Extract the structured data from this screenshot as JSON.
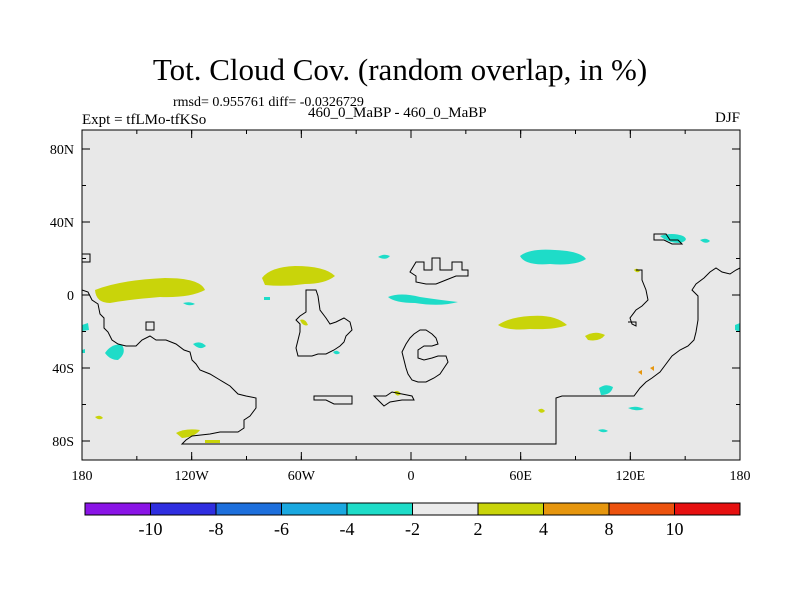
{
  "title": "Tot. Cloud Cov. (random overlap, in %)",
  "stats": "rmsd= 0.955761  diff= -0.0326729",
  "experiment": "Expt = tfLMo-tfKSo",
  "experiment_names": "460_0_MaBP - 460_0_MaBP",
  "season": "DJF",
  "lat_labels": [
    "80N",
    "40N",
    "0",
    "40S",
    "80S"
  ],
  "lat_values": [
    80,
    40,
    0,
    -40,
    -80
  ],
  "lon_labels": [
    "180",
    "120W",
    "60W",
    "0",
    "60E",
    "120E",
    "180"
  ],
  "lon_values": [
    -180,
    -120,
    -60,
    0,
    60,
    120,
    180
  ],
  "colorbar": {
    "labels": [
      "-10",
      "-8",
      "-6",
      "-4",
      "-2",
      "2",
      "4",
      "8",
      "10"
    ],
    "colors": [
      "#8a14e6",
      "#2f2ee0",
      "#1d6fdc",
      "#1aa8e0",
      "#1edcc8",
      "#ebebeb",
      "#c9d40a",
      "#e6960e",
      "#ec520e",
      "#e61010"
    ]
  },
  "colors": {
    "map_background": "#e8e8e8",
    "positive_anomaly": "#c9d40a",
    "negative_anomaly": "#1edcc8",
    "orange_anomaly": "#e6960e"
  }
}
